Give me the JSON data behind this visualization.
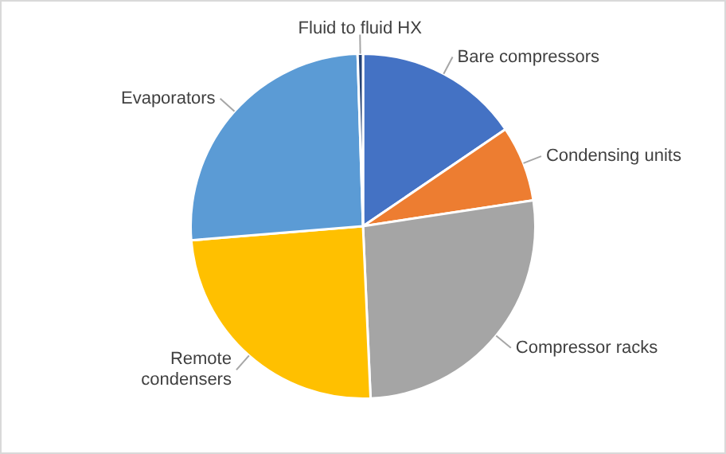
{
  "chart_data": {
    "type": "pie",
    "categories": [
      "Bare compressors",
      "Condensing units",
      "Compressor racks",
      "Remote condensers",
      "Evaporators",
      "Fluid to fluid HX"
    ],
    "values": [
      15.5,
      7.1,
      26.7,
      24.4,
      25.8,
      0.5
    ],
    "colors": [
      "#4472c4",
      "#ed7d31",
      "#a5a5a5",
      "#ffc000",
      "#5b9bd5",
      "#264478"
    ],
    "legend": false
  }
}
